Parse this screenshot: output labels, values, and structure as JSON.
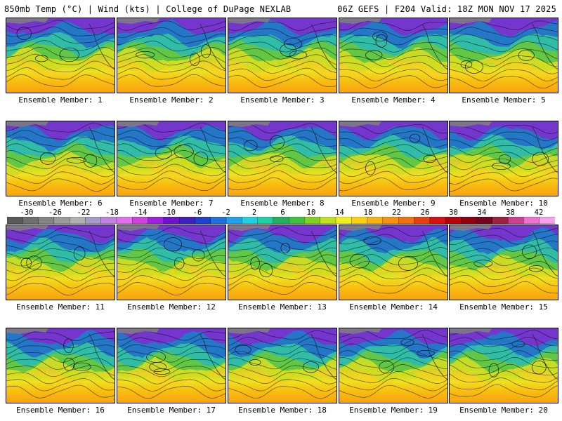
{
  "header": {
    "left_title": "850mb Temp (°C) | Wind (kts) | College of DuPage NEXLAB",
    "right_title": "06Z GEFS | F204 Valid: 18Z MON NOV 17 2025"
  },
  "panels": [
    {
      "label": "Ensemble Member: 1"
    },
    {
      "label": "Ensemble Member: 2"
    },
    {
      "label": "Ensemble Member: 3"
    },
    {
      "label": "Ensemble Member: 4"
    },
    {
      "label": "Ensemble Member: 5"
    },
    {
      "label": "Ensemble Member: 6"
    },
    {
      "label": "Ensemble Member: 7"
    },
    {
      "label": "Ensemble Member: 8"
    },
    {
      "label": "Ensemble Member: 9"
    },
    {
      "label": "Ensemble Member: 10"
    },
    {
      "label": "Ensemble Member: 11"
    },
    {
      "label": "Ensemble Member: 12"
    },
    {
      "label": "Ensemble Member: 13"
    },
    {
      "label": "Ensemble Member: 14"
    },
    {
      "label": "Ensemble Member: 15"
    },
    {
      "label": "Ensemble Member: 16"
    },
    {
      "label": "Ensemble Member: 17"
    },
    {
      "label": "Ensemble Member: 18"
    },
    {
      "label": "Ensemble Member: 19"
    },
    {
      "label": "Ensemble Member: 20"
    }
  ],
  "colorbar": {
    "tick_labels": [
      "-30",
      "-26",
      "-22",
      "-18",
      "-14",
      "-10",
      "-6",
      "-2",
      "2",
      "6",
      "10",
      "14",
      "18",
      "22",
      "26",
      "30",
      "34",
      "38",
      "42"
    ],
    "colors": [
      "#5a5a5a",
      "#6e6e6e",
      "#848484",
      "#9a9a9a",
      "#b0b0b0",
      "#a898c8",
      "#c080e0",
      "#e070f0",
      "#d040e0",
      "#a020e0",
      "#7010d0",
      "#4020c0",
      "#2040d0",
      "#2070e0",
      "#20a0f0",
      "#20d0e0",
      "#20d0a0",
      "#20b060",
      "#40c040",
      "#80d020",
      "#c0e020",
      "#f0f020",
      "#f8d010",
      "#f8b010",
      "#f89010",
      "#f07010",
      "#e84010",
      "#d81010",
      "#b80010",
      "#900010",
      "#780020",
      "#a02040",
      "#d04090",
      "#f070d0",
      "#f8a0f0"
    ]
  }
}
